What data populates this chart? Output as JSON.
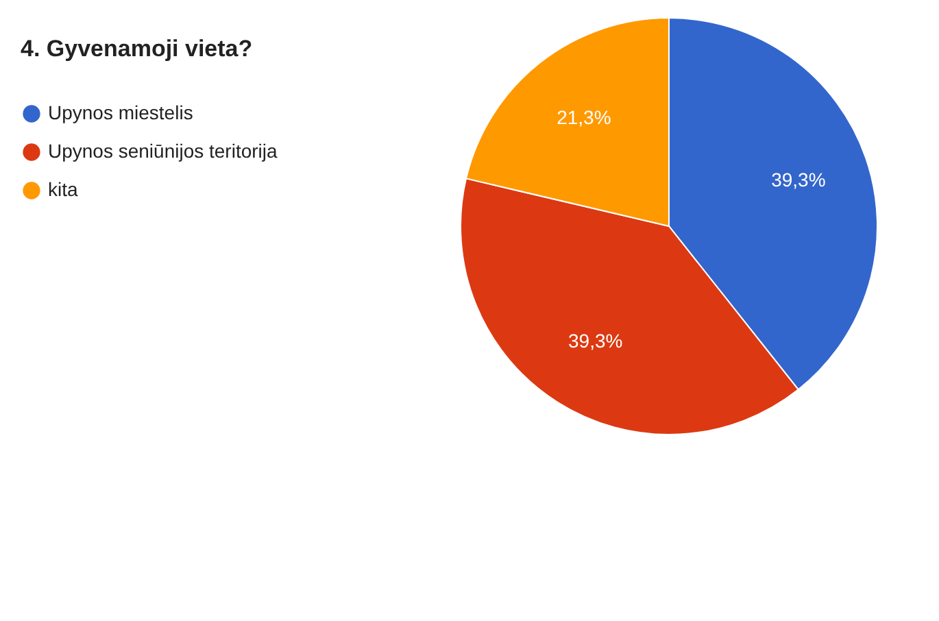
{
  "chart_data": {
    "type": "pie",
    "title": "4. Gyvenamoji vieta?",
    "categories": [
      "Upynos miestelis",
      "Upynos seniūnijos teritorija",
      "kita"
    ],
    "values": [
      39.3,
      39.3,
      21.3
    ],
    "colors": [
      "#3366cc",
      "#dc3912",
      "#ff9900"
    ],
    "value_labels": [
      "39,3%",
      "39,3%",
      "21,3%"
    ],
    "legend": "top left"
  }
}
